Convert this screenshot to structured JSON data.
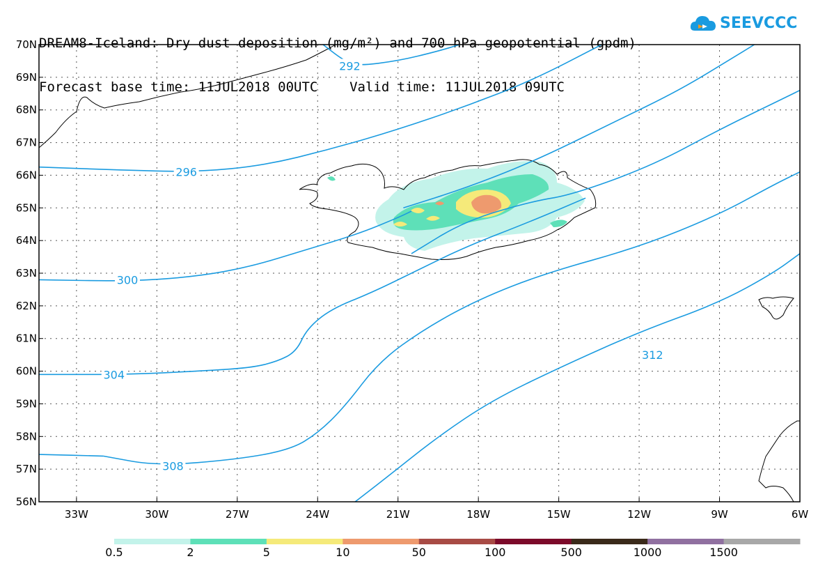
{
  "title": {
    "line1": "DREAM8-Iceland: Dry dust deposition (mg/m²) and 700 hPa geopotential (gpdm)",
    "line2": "Forecast base time: 11JUL2018 00UTC    Valid time: 11JUL2018 09UTC"
  },
  "logo": {
    "text": "SEEVCCC",
    "icon": "cloud-icon",
    "color": "#1a9be0"
  },
  "map": {
    "lon_range": [
      -34.4,
      -6.0
    ],
    "lat_range": [
      56.0,
      70.0
    ],
    "contour_color": "#1a9be0",
    "gridlines": "dotted",
    "lat_ticks": [
      "70N",
      "69N",
      "68N",
      "67N",
      "66N",
      "65N",
      "64N",
      "63N",
      "62N",
      "61N",
      "60N",
      "59N",
      "58N",
      "57N",
      "56N"
    ],
    "lat_values": [
      70,
      69,
      68,
      67,
      66,
      65,
      64,
      63,
      62,
      61,
      60,
      59,
      58,
      57,
      56
    ],
    "lon_ticks": [
      "33W",
      "30W",
      "27W",
      "24W",
      "21W",
      "18W",
      "15W",
      "12W",
      "9W",
      "6W"
    ],
    "lon_values": [
      -33,
      -30,
      -27,
      -24,
      -21,
      -18,
      -15,
      -12,
      -9,
      -6
    ]
  },
  "contours": [
    {
      "label": "292",
      "label_at": [
        -22.8,
        69.35
      ],
      "points": [
        [
          -23.8,
          70.0
        ],
        [
          -23.0,
          69.5
        ],
        [
          -22.5,
          69.35
        ],
        [
          -21.0,
          69.5
        ],
        [
          -19.5,
          69.8
        ],
        [
          -18.7,
          70.0
        ]
      ]
    },
    {
      "label": "296",
      "label_at": [
        -28.9,
        66.1
      ],
      "points": [
        [
          -34.4,
          66.25
        ],
        [
          -31,
          66.15
        ],
        [
          -28.5,
          66.1
        ],
        [
          -26,
          66.3
        ],
        [
          -23.5,
          66.8
        ],
        [
          -21,
          67.4
        ],
        [
          -18.5,
          68.1
        ],
        [
          -16,
          68.9
        ],
        [
          -13.4,
          70.0
        ]
      ]
    },
    {
      "label": null,
      "label_at": null,
      "points": [
        [
          -20.8,
          65.0
        ],
        [
          -18.5,
          65.6
        ],
        [
          -16,
          66.4
        ],
        [
          -13,
          67.6
        ],
        [
          -10.5,
          68.6
        ],
        [
          -8.5,
          69.6
        ],
        [
          -7.7,
          70.0
        ]
      ]
    },
    {
      "label": "300",
      "label_at": [
        -31.1,
        62.8
      ],
      "points": [
        [
          -34.4,
          62.8
        ],
        [
          -31,
          62.75
        ],
        [
          -28.5,
          62.9
        ],
        [
          -26.5,
          63.2
        ],
        [
          -24.5,
          63.7
        ],
        [
          -22.5,
          64.2
        ],
        [
          -21,
          64.7
        ],
        [
          -20.5,
          64.9
        ]
      ]
    },
    {
      "label": null,
      "label_at": null,
      "points": [
        [
          -20.5,
          63.6
        ],
        [
          -18.5,
          64.6
        ],
        [
          -16,
          65.2
        ],
        [
          -14.5,
          65.4
        ],
        [
          -11.5,
          66.3
        ],
        [
          -9,
          67.4
        ],
        [
          -7,
          68.2
        ],
        [
          -6.0,
          68.6
        ]
      ]
    },
    {
      "label": "304",
      "label_at": [
        -31.6,
        59.9
      ],
      "points": [
        [
          -34.4,
          59.9
        ],
        [
          -31,
          59.9
        ],
        [
          -28.5,
          60.0
        ],
        [
          -26.5,
          60.1
        ],
        [
          -25.5,
          60.3
        ],
        [
          -24.8,
          60.6
        ],
        [
          -24.4,
          61.3
        ],
        [
          -23.5,
          61.9
        ],
        [
          -22,
          62.4
        ],
        [
          -20.5,
          63.0
        ],
        [
          -18.5,
          63.8
        ],
        [
          -16,
          64.6
        ],
        [
          -14,
          65.3
        ]
      ]
    },
    {
      "label": null,
      "label_at": null,
      "points": [
        [
          -22.6,
          56.0
        ],
        [
          -21.5,
          56.7
        ],
        [
          -19.5,
          58.0
        ],
        [
          -17.5,
          59.1
        ],
        [
          -15,
          60.1
        ],
        [
          -12,
          61.2
        ],
        [
          -9,
          62.1
        ],
        [
          -7,
          63.0
        ],
        [
          -6.0,
          63.6
        ]
      ]
    },
    {
      "label": null,
      "label_at": null,
      "points": [
        [
          -32,
          57.4
        ],
        [
          -30,
          57.1
        ],
        [
          -27,
          57.3
        ],
        [
          -25,
          57.6
        ],
        [
          -24,
          58.1
        ],
        [
          -23,
          58.9
        ],
        [
          -21.7,
          60.3
        ],
        [
          -20,
          61.3
        ],
        [
          -18,
          62.2
        ],
        [
          -15.5,
          63.0
        ],
        [
          -12,
          63.8
        ],
        [
          -9,
          64.8
        ],
        [
          -7,
          65.7
        ],
        [
          -6.0,
          66.1
        ]
      ]
    },
    {
      "label": "308",
      "label_at": [
        -29.4,
        57.1
      ],
      "points": [
        [
          -34.4,
          57.45
        ],
        [
          -32,
          57.4
        ]
      ]
    },
    {
      "label": "312",
      "label_at": [
        -11.5,
        60.5
      ],
      "points": [
        [
          -15,
          60.1
        ]
      ]
    }
  ],
  "legend": {
    "labels": [
      "0.5",
      "2",
      "5",
      "10",
      "50",
      "100",
      "500",
      "1000",
      "1500"
    ],
    "colors": [
      "#c3f3ea",
      "#5ee0b8",
      "#f5ea7a",
      "#ee9a6e",
      "#a84b45",
      "#7c0a2a",
      "#3a2a1a",
      "#9070a0",
      "#a8a8a8"
    ]
  },
  "deposition": {
    "levels": [
      "0.5",
      "2",
      "5",
      "10"
    ],
    "colors": [
      "#c3f3ea",
      "#5ee0b8",
      "#f5ea7a",
      "#ee9a6e"
    ]
  }
}
